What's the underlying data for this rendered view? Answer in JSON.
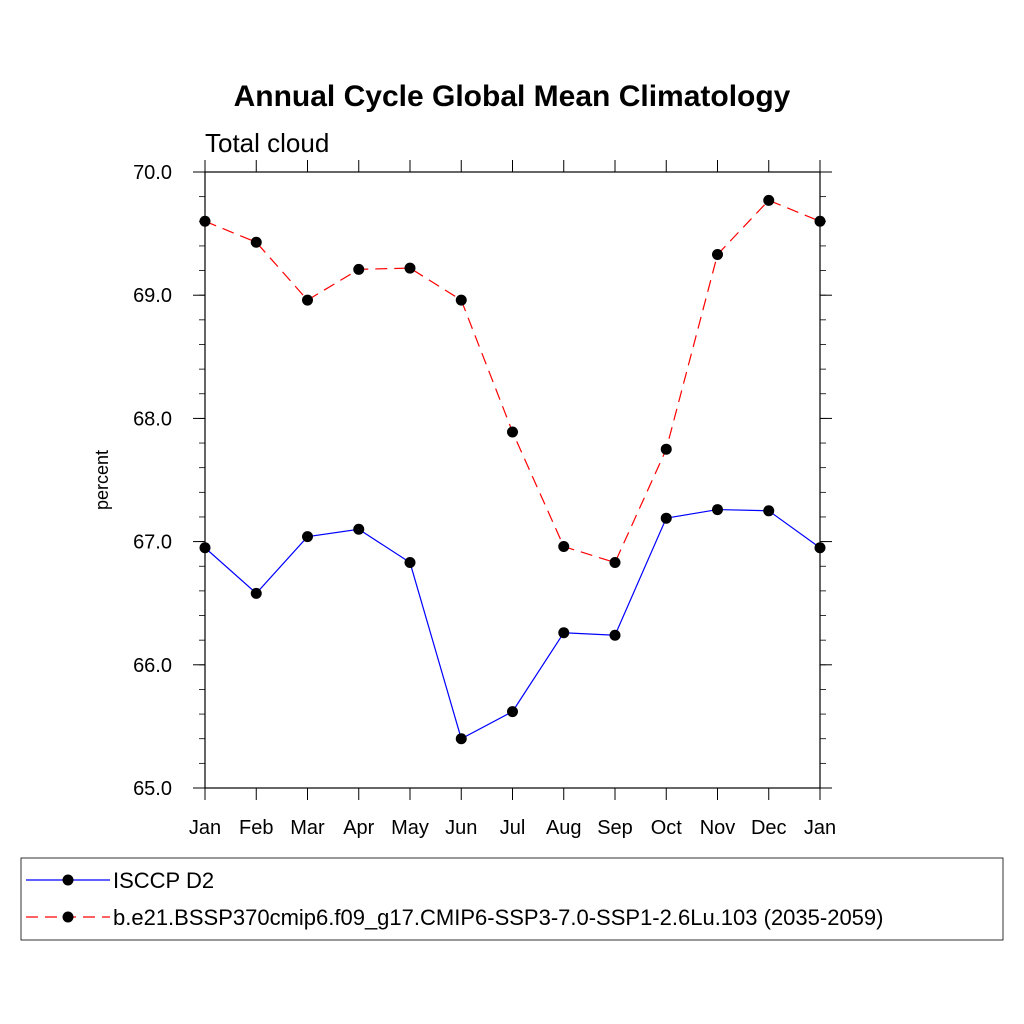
{
  "chart_data": {
    "type": "line",
    "title": "Annual Cycle Global Mean Climatology",
    "subtitle": "Total cloud",
    "xlabel": "",
    "ylabel": "percent",
    "categories": [
      "Jan",
      "Feb",
      "Mar",
      "Apr",
      "May",
      "Jun",
      "Jul",
      "Aug",
      "Sep",
      "Oct",
      "Nov",
      "Dec",
      "Jan"
    ],
    "ylim": [
      65.0,
      70.0
    ],
    "yticks": [
      65.0,
      66.0,
      67.0,
      68.0,
      69.0,
      70.0
    ],
    "ytick_labels": [
      "65.0",
      "66.0",
      "67.0",
      "68.0",
      "69.0",
      "70.0"
    ],
    "grid": false,
    "legend_position": "bottom",
    "series": [
      {
        "name": "ISCCP D2",
        "color": "#0000ff",
        "dash": "solid",
        "marker": "filled-circle",
        "values": [
          66.95,
          66.58,
          67.04,
          67.1,
          66.83,
          65.4,
          65.62,
          66.26,
          66.24,
          67.19,
          67.26,
          67.25,
          66.95
        ]
      },
      {
        "name": "b.e21.BSSP370cmip6.f09_g17.CMIP6-SSP3-7.0-SSP1-2.6Lu.103 (2035-2059)",
        "color": "#ff0000",
        "dash": "dashed",
        "marker": "filled-circle",
        "values": [
          69.6,
          69.43,
          68.96,
          69.21,
          69.22,
          68.96,
          67.89,
          66.96,
          66.83,
          67.75,
          69.33,
          69.77,
          69.6
        ]
      }
    ]
  }
}
